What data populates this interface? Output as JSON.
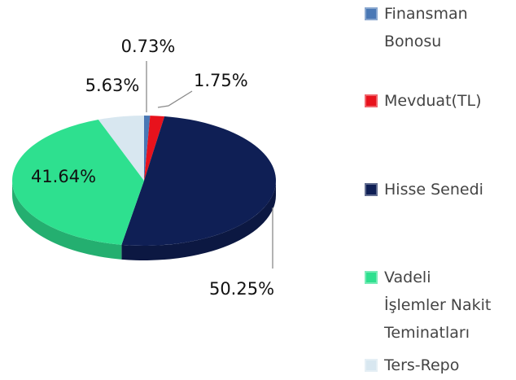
{
  "chart_data": {
    "type": "pie3d",
    "series": [
      {
        "name": "Finansman\nBonosu",
        "color": "#4a78b5",
        "values": [
          0.73
        ],
        "value_labels": [
          "0.73%"
        ]
      },
      {
        "name": "Mevduat(TL)",
        "color": "#e8121c",
        "values": [
          1.75
        ],
        "value_labels": [
          "1.75%"
        ]
      },
      {
        "name": "Hisse Senedi",
        "color": "#0f1f55",
        "values": [
          50.25
        ],
        "value_labels": [
          "50.25%"
        ]
      },
      {
        "name": "Vadeli\nİşlemler Nakit\nTeminatları",
        "color": "#2ee08f",
        "values": [
          41.64
        ],
        "value_labels": [
          "41.64%"
        ]
      },
      {
        "name": "Ters-Repo",
        "color": "#d8e7f0",
        "values": [
          5.63
        ],
        "value_labels": [
          "5.63%"
        ]
      }
    ],
    "legend": "right"
  }
}
